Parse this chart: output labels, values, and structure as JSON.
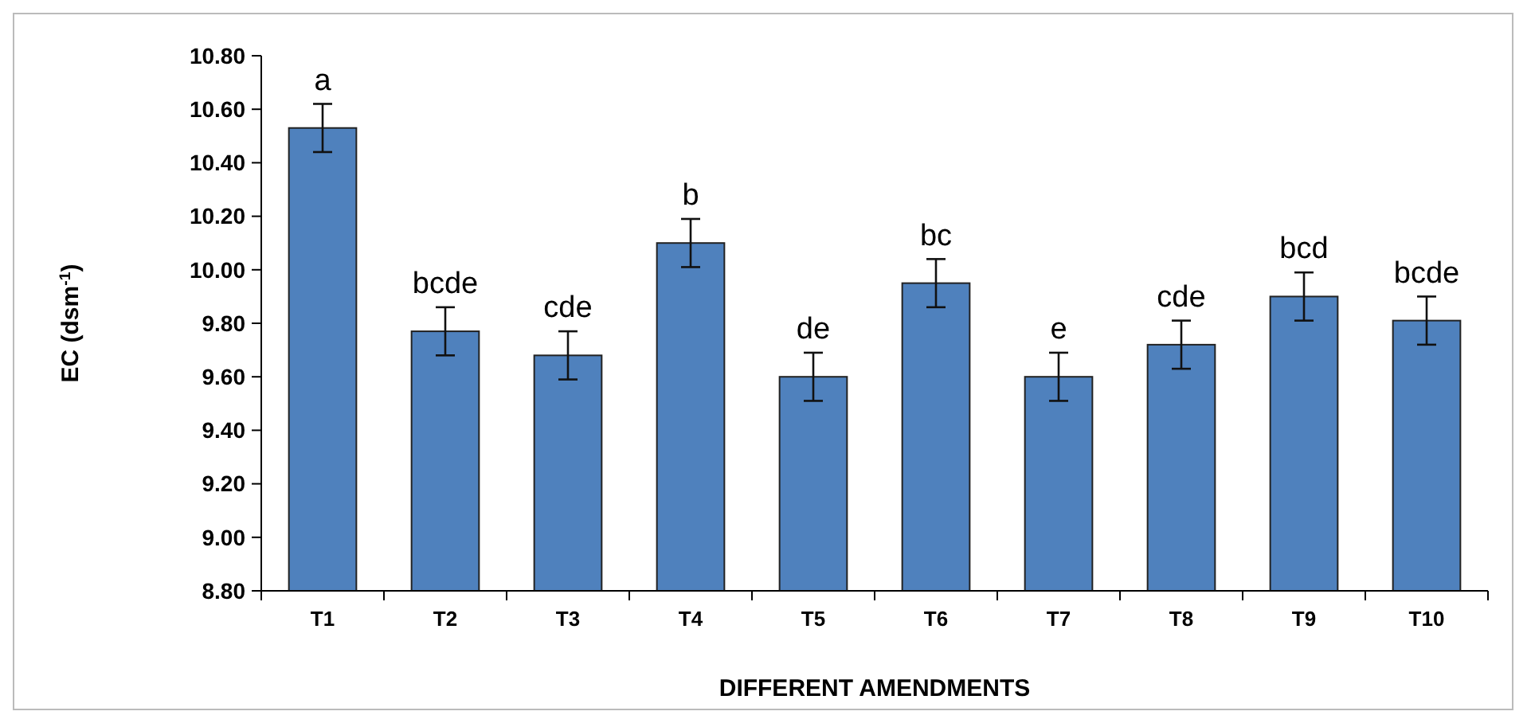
{
  "chart_data": {
    "type": "bar",
    "xlabel": "DIFFERENT AMENDMENTS",
    "ylabel": "EC (dsm$^{-1}$)",
    "categories": [
      "T1",
      "T2",
      "T3",
      "T4",
      "T5",
      "T6",
      "T7",
      "T8",
      "T9",
      "T10"
    ],
    "values": [
      10.53,
      9.77,
      9.68,
      10.1,
      9.6,
      9.95,
      9.6,
      9.72,
      9.9,
      9.81
    ],
    "errors": [
      0.09,
      0.09,
      0.09,
      0.09,
      0.09,
      0.09,
      0.09,
      0.09,
      0.09,
      0.09
    ],
    "color": "#4f81bd",
    "ylim": [
      8.8,
      10.8
    ],
    "yticks": [
      {
        "value": 8.8,
        "label": "8.80"
      },
      {
        "value": 9.0,
        "label": "9.00"
      },
      {
        "value": 9.2,
        "label": "9.20"
      },
      {
        "value": 9.4,
        "label": "9.40"
      },
      {
        "value": 9.6,
        "label": "9.60"
      },
      {
        "value": 9.8,
        "label": "9.80"
      },
      {
        "value": 10.0,
        "label": "10.00"
      },
      {
        "value": 10.2,
        "label": "10.20"
      },
      {
        "value": 10.4,
        "label": "10.40"
      },
      {
        "value": 10.6,
        "label": "10.60"
      },
      {
        "value": 10.8,
        "label": "10.80"
      }
    ],
    "grid": false,
    "annotations": [
      {
        "text": "a",
        "x": "T1",
        "y": 10.53
      },
      {
        "text": "bcde",
        "x": "T2",
        "y": 9.77
      },
      {
        "text": "cde",
        "x": "T3",
        "y": 9.68
      },
      {
        "text": "b",
        "x": "T4",
        "y": 10.1
      },
      {
        "text": "de",
        "x": "T5",
        "y": 9.6
      },
      {
        "text": "bc",
        "x": "T6",
        "y": 9.95
      },
      {
        "text": "e",
        "x": "T7",
        "y": 9.6
      },
      {
        "text": "cde",
        "x": "T8",
        "y": 9.72
      },
      {
        "text": "bcd",
        "x": "T9",
        "y": 9.9
      },
      {
        "text": "bcde",
        "x": "T10",
        "y": 9.81
      }
    ]
  }
}
